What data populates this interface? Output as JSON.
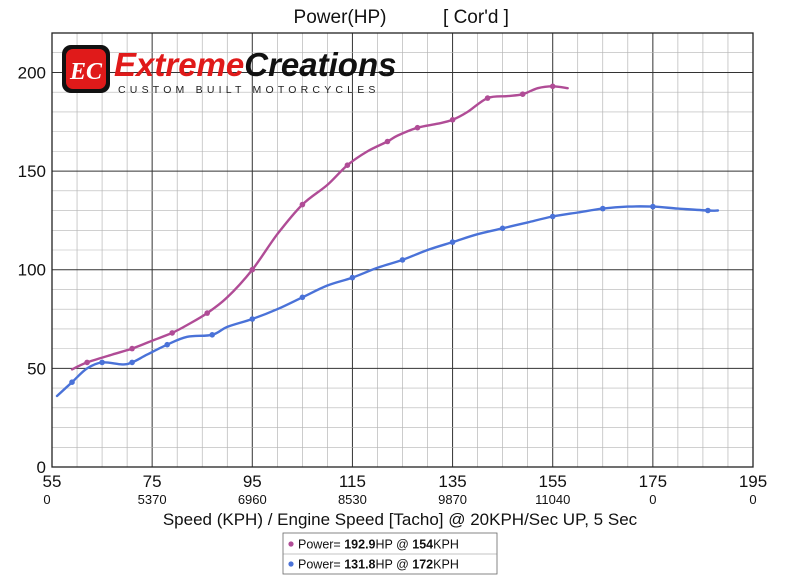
{
  "chart_data": {
    "type": "line",
    "title": "Power(HP)",
    "subtitle": "[ Cor'd ]",
    "xlabel": "Speed (KPH) / Engine Speed [Tacho] @ 20KPH/Sec UP, 5 Sec",
    "ylabel": "",
    "xlim": [
      55,
      195
    ],
    "ylim": [
      0,
      220
    ],
    "x_ticks": [
      "55",
      "75",
      "95",
      "115",
      "135",
      "155",
      "175",
      "195"
    ],
    "x_ticks_secondary": [
      "0",
      "5370",
      "6960",
      "8530",
      "9870",
      "11040",
      "0",
      "0"
    ],
    "y_ticks": [
      "0",
      "50",
      "100",
      "150",
      "200"
    ],
    "grid": true,
    "series": [
      {
        "name": "Power= 192.9HP @ 154KPH",
        "color": "#b04c96",
        "x": [
          59,
          62,
          67,
          71,
          75,
          79,
          82,
          86,
          90,
          95,
          100,
          105,
          110,
          114,
          118,
          122,
          124,
          128,
          132,
          135,
          138,
          142,
          146,
          149,
          152,
          155,
          158
        ],
        "y": [
          49.5,
          53,
          57,
          60,
          64,
          68,
          72,
          78,
          86,
          100,
          118,
          133,
          143,
          153,
          160,
          165,
          168,
          172,
          174,
          176,
          180,
          187,
          188,
          189,
          192,
          193,
          192
        ]
      },
      {
        "name": "Power= 131.8HP @ 172KPH",
        "color": "#4a72d8",
        "x": [
          56,
          59,
          62,
          65,
          69,
          71,
          74,
          78,
          82,
          87,
          90,
          95,
          100,
          105,
          110,
          115,
          120,
          125,
          130,
          135,
          140,
          145,
          150,
          155,
          160,
          165,
          170,
          175,
          180,
          186,
          188
        ],
        "y": [
          36,
          43,
          50,
          53,
          52,
          53,
          57,
          62,
          66,
          67,
          71,
          75,
          80,
          86,
          92,
          96,
          101,
          105,
          110,
          114,
          118,
          121,
          124,
          127,
          129,
          131,
          132,
          132,
          131,
          130,
          130
        ]
      }
    ],
    "legend": {
      "placement": "bottom-center",
      "items": [
        {
          "prefix": "Power= ",
          "value": "192.9",
          "unit": "HP @ ",
          "speed": "154",
          "speed_unit": "KPH",
          "color": "#b04c96"
        },
        {
          "prefix": "Power= ",
          "value": "131.8",
          "unit": "HP @ ",
          "speed": "172",
          "speed_unit": "KPH",
          "color": "#4a72d8"
        }
      ]
    },
    "logo": {
      "badge": "EC",
      "brand_first": "Extreme",
      "brand_second": "Creations",
      "tagline": "CUSTOM BUILT MOTORCYCLES",
      "colors": {
        "red": "#e01a1a",
        "black": "#111111"
      }
    }
  }
}
